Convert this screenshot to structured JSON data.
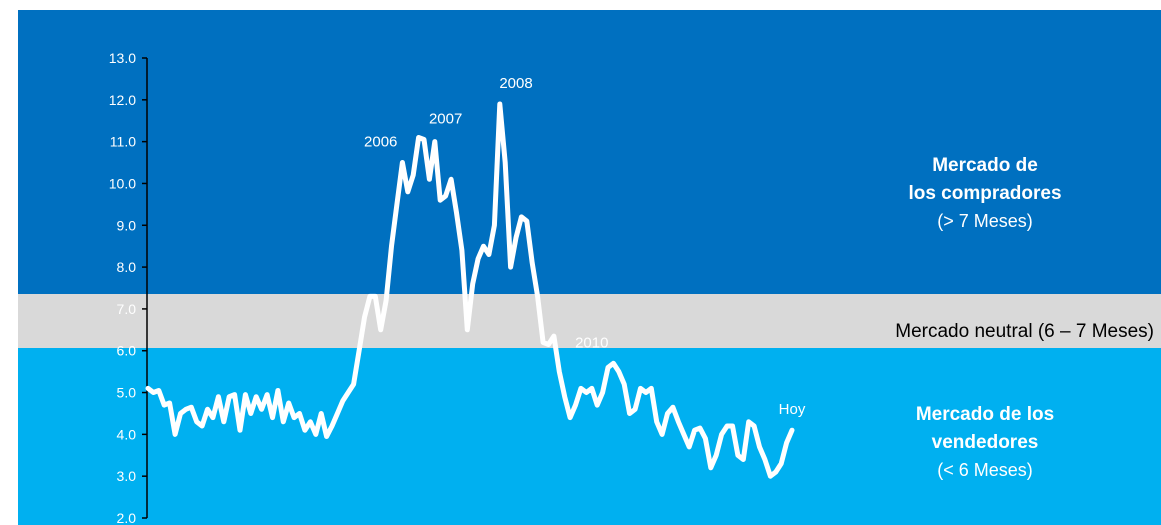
{
  "chart_data": {
    "type": "line",
    "ylim": [
      2.0,
      13.0
    ],
    "y_ticks": [
      "2.0",
      "3.0",
      "4.0",
      "5.0",
      "6.0",
      "7.0",
      "8.0",
      "9.0",
      "10.0",
      "11.0",
      "12.0",
      "13.0"
    ],
    "grid": false,
    "zones": {
      "buyers": {
        "line1": "Mercado de",
        "line2": "los compradores",
        "line3": "(> 7 Meses)",
        "color": "#0070C0"
      },
      "neutral": {
        "label": "Mercado neutral (6 – 7 Meses)",
        "color": "#D9D9D9"
      },
      "sellers": {
        "line1": "Mercado de los",
        "line2": "vendedores",
        "line3": "(< 6 Meses)",
        "color": "#00B0F0"
      }
    },
    "annotations": [
      {
        "text": "2006",
        "index": 43
      },
      {
        "text": "2007",
        "index": 55
      },
      {
        "text": "2008",
        "index": 68
      },
      {
        "text": "2010",
        "index": 82
      },
      {
        "text": "Hoy",
        "index": 156
      }
    ],
    "line_color": "#ffffff",
    "values": [
      5.1,
      5.0,
      5.05,
      4.7,
      4.75,
      4.0,
      4.5,
      4.6,
      4.65,
      4.3,
      4.2,
      4.6,
      4.4,
      4.9,
      4.3,
      4.9,
      4.95,
      4.1,
      4.95,
      4.5,
      4.9,
      4.6,
      4.95,
      4.4,
      5.05,
      4.3,
      4.75,
      4.4,
      4.5,
      4.1,
      4.3,
      4.0,
      4.5,
      3.95,
      4.2,
      4.5,
      4.8,
      5.0,
      5.2,
      6.0,
      6.8,
      7.3,
      7.3,
      6.5,
      7.2,
      8.5,
      9.5,
      10.5,
      9.8,
      10.2,
      11.1,
      11.05,
      10.1,
      11.0,
      9.6,
      9.7,
      10.1,
      9.3,
      8.4,
      6.5,
      7.6,
      8.2,
      8.5,
      8.3,
      9.0,
      11.9,
      10.5,
      8.0,
      8.7,
      9.2,
      9.1,
      8.1,
      7.3,
      6.2,
      6.15,
      6.35,
      5.5,
      4.9,
      4.4,
      4.7,
      5.1,
      5.0,
      5.1,
      4.7,
      5.0,
      5.6,
      5.7,
      5.5,
      5.2,
      4.5,
      4.6,
      5.1,
      5.0,
      5.1,
      4.3,
      4.0,
      4.5,
      4.65,
      4.3,
      4.0,
      3.7,
      4.1,
      4.15,
      3.9,
      3.2,
      3.5,
      4.0,
      4.2,
      4.2,
      3.5,
      3.4,
      4.3,
      4.2,
      3.7,
      3.4,
      3.0,
      3.1,
      3.3,
      3.8,
      4.1
    ]
  }
}
